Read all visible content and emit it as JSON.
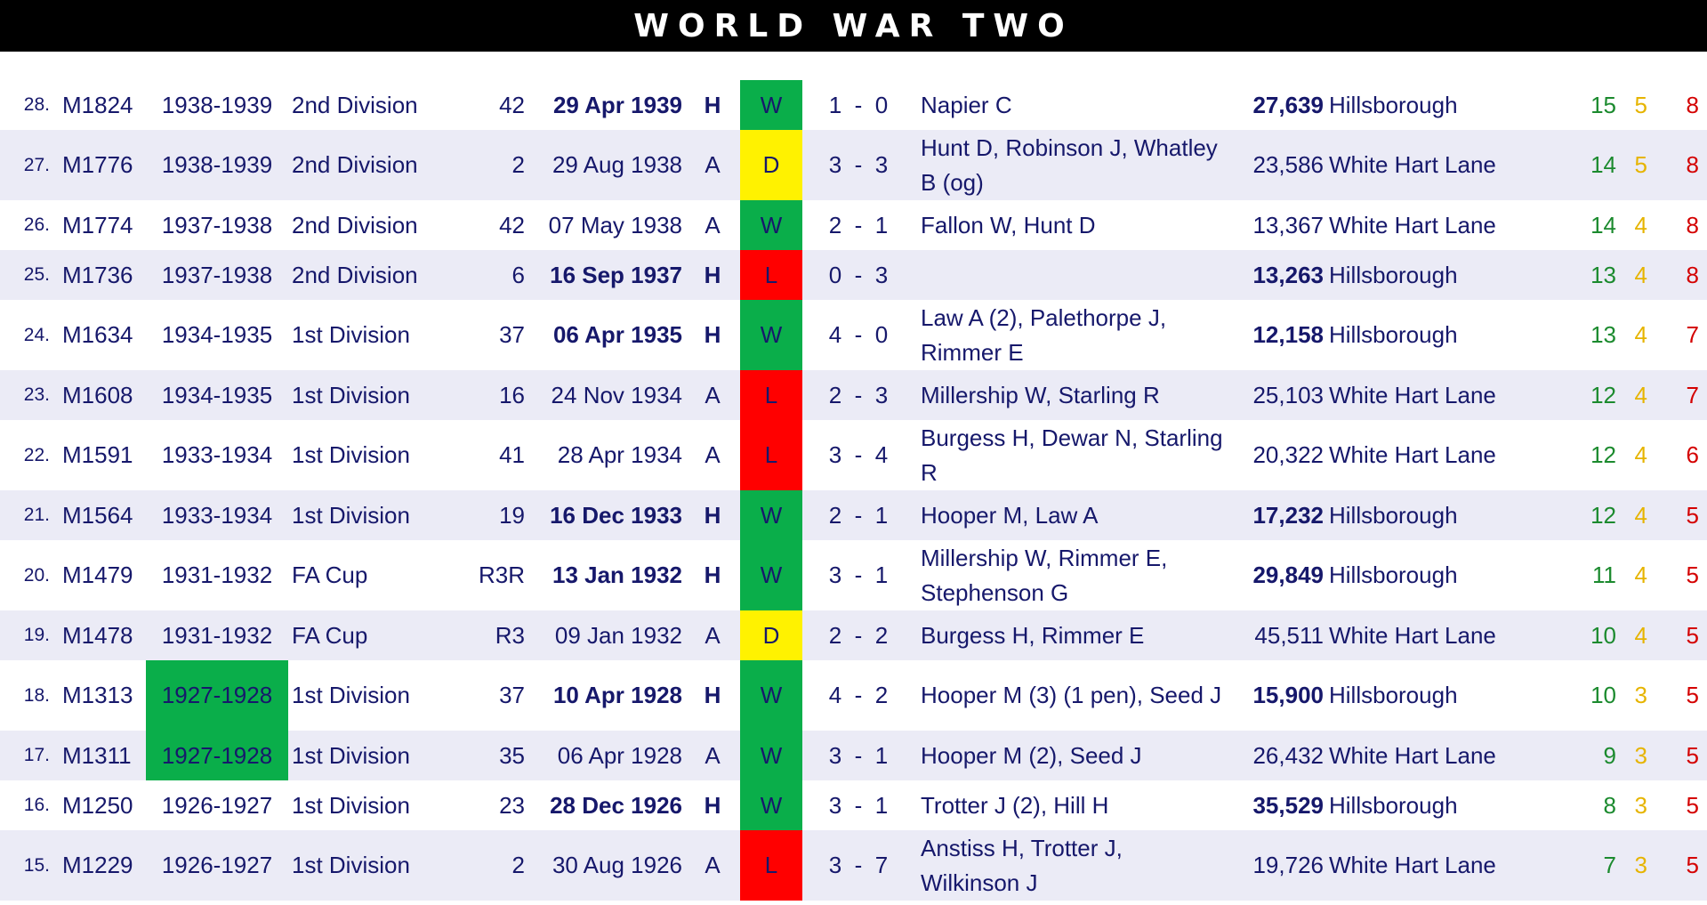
{
  "title": "WORLD WAR TWO",
  "colors": {
    "win": "#0aae4a",
    "draw": "#fff200",
    "loss": "#ff0000",
    "text": "#16186b"
  },
  "rows": [
    {
      "num": "28.",
      "id": "M1824",
      "season": "1938-1939",
      "comp": "2nd Division",
      "round": "42",
      "date": "29 Apr 1939",
      "ha": "H",
      "result": "W",
      "score": "1  -  0",
      "scorers": "Napier C",
      "att": "27,639",
      "venue": "Hillsborough",
      "w": "15",
      "d": "5",
      "l": "8"
    },
    {
      "num": "27.",
      "id": "M1776",
      "season": "1938-1939",
      "comp": "2nd Division",
      "round": "2",
      "date": "29 Aug 1938",
      "ha": "A",
      "result": "D",
      "score": "3  -  3",
      "scorers": "Hunt D, Robinson J, Whatley B (og)",
      "att": "23,586",
      "venue": "White Hart Lane",
      "w": "14",
      "d": "5",
      "l": "8"
    },
    {
      "num": "26.",
      "id": "M1774",
      "season": "1937-1938",
      "comp": "2nd Division",
      "round": "42",
      "date": "07 May 1938",
      "ha": "A",
      "result": "W",
      "score": "2  -  1",
      "scorers": "Fallon W, Hunt D",
      "att": "13,367",
      "venue": "White Hart Lane",
      "w": "14",
      "d": "4",
      "l": "8"
    },
    {
      "num": "25.",
      "id": "M1736",
      "season": "1937-1938",
      "comp": "2nd Division",
      "round": "6",
      "date": "16 Sep 1937",
      "ha": "H",
      "result": "L",
      "score": "0  -  3",
      "scorers": "",
      "att": "13,263",
      "venue": "Hillsborough",
      "w": "13",
      "d": "4",
      "l": "8"
    },
    {
      "num": "24.",
      "id": "M1634",
      "season": "1934-1935",
      "comp": "1st Division",
      "round": "37",
      "date": "06 Apr 1935",
      "ha": "H",
      "result": "W",
      "score": "4  -  0",
      "scorers": "Law A (2), Palethorpe J, Rimmer E",
      "att": "12,158",
      "venue": "Hillsborough",
      "w": "13",
      "d": "4",
      "l": "7"
    },
    {
      "num": "23.",
      "id": "M1608",
      "season": "1934-1935",
      "comp": "1st Division",
      "round": "16",
      "date": "24 Nov 1934",
      "ha": "A",
      "result": "L",
      "score": "2  -  3",
      "scorers": "Millership W, Starling R",
      "att": "25,103",
      "venue": "White Hart Lane",
      "w": "12",
      "d": "4",
      "l": "7"
    },
    {
      "num": "22.",
      "id": "M1591",
      "season": "1933-1934",
      "comp": "1st Division",
      "round": "41",
      "date": "28 Apr 1934",
      "ha": "A",
      "result": "L",
      "score": "3  -  4",
      "scorers": "Burgess H, Dewar N, Starling R",
      "att": "20,322",
      "venue": "White Hart Lane",
      "w": "12",
      "d": "4",
      "l": "6"
    },
    {
      "num": "21.",
      "id": "M1564",
      "season": "1933-1934",
      "comp": "1st Division",
      "round": "19",
      "date": "16 Dec 1933",
      "ha": "H",
      "result": "W",
      "score": "2  -  1",
      "scorers": "Hooper M, Law A",
      "att": "17,232",
      "venue": "Hillsborough",
      "w": "12",
      "d": "4",
      "l": "5"
    },
    {
      "num": "20.",
      "id": "M1479",
      "season": "1931-1932",
      "comp": "FA Cup",
      "round": "R3R",
      "date": "13 Jan 1932",
      "ha": "H",
      "result": "W",
      "score": "3  -  1",
      "scorers": "Millership W, Rimmer E, Stephenson G",
      "att": "29,849",
      "venue": "Hillsborough",
      "w": "11",
      "d": "4",
      "l": "5"
    },
    {
      "num": "19.",
      "id": "M1478",
      "season": "1931-1932",
      "comp": "FA Cup",
      "round": "R3",
      "date": "09 Jan 1932",
      "ha": "A",
      "result": "D",
      "score": "2  -  2",
      "scorers": "Burgess H, Rimmer E",
      "att": "45,511",
      "venue": "White Hart Lane",
      "w": "10",
      "d": "4",
      "l": "5"
    },
    {
      "num": "18.",
      "id": "M1313",
      "season": "1927-1928",
      "comp": "1st Division",
      "round": "37",
      "date": "10 Apr 1928",
      "ha": "H",
      "result": "W",
      "score": "4  -  2",
      "scorers": "Hooper M (3) (1 pen), Seed J",
      "att": "15,900",
      "venue": "Hillsborough",
      "w": "10",
      "d": "3",
      "l": "5"
    },
    {
      "num": "17.",
      "id": "M1311",
      "season": "1927-1928",
      "comp": "1st Division",
      "round": "35",
      "date": "06 Apr 1928",
      "ha": "A",
      "result": "W",
      "score": "3  -  1",
      "scorers": "Hooper M (2), Seed J",
      "att": "26,432",
      "venue": "White Hart Lane",
      "w": "9",
      "d": "3",
      "l": "5"
    },
    {
      "num": "16.",
      "id": "M1250",
      "season": "1926-1927",
      "comp": "1st Division",
      "round": "23",
      "date": "28 Dec 1926",
      "ha": "H",
      "result": "W",
      "score": "3  -  1",
      "scorers": "Trotter J (2), Hill H",
      "att": "35,529",
      "venue": "Hillsborough",
      "w": "8",
      "d": "3",
      "l": "5"
    },
    {
      "num": "15.",
      "id": "M1229",
      "season": "1926-1927",
      "comp": "1st Division",
      "round": "2",
      "date": "30 Aug 1926",
      "ha": "A",
      "result": "L",
      "score": "3  -  7",
      "scorers": "Anstiss H, Trotter J, Wilkinson J",
      "att": "19,726",
      "venue": "White Hart Lane",
      "w": "7",
      "d": "3",
      "l": "5"
    }
  ]
}
